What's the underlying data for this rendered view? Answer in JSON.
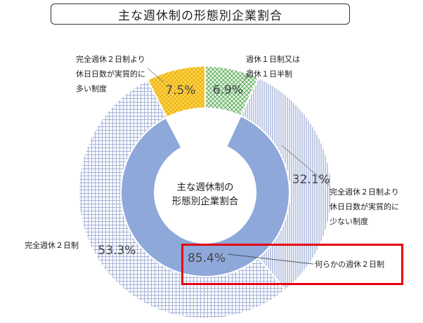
{
  "title": "主な週休制の形態別企業割合",
  "center_label": [
    "主な週休制の",
    "形態別企業割合"
  ],
  "colors": {
    "weekly_one_day": "#5fb85f",
    "full_two_day_more": "#8e9fcf",
    "full_two_day": "#a3b1d7",
    "full_two_day_less": "#f5c33b",
    "inner_ring": "#8fa8da",
    "highlight": "#e60012"
  },
  "chart_data": {
    "type": "pie",
    "title": "主な週休制の形態別企業割合",
    "outer_ring": [
      {
        "label": [
          "週休１日制又は",
          "週休１日半制"
        ],
        "value": 6.9,
        "display": "6.9%",
        "pattern": "green-lattice"
      },
      {
        "label": [
          "完全週休２日制より",
          "休日日数が実質的に",
          "少ない制度"
        ],
        "value": 32.1,
        "display": "32.1%",
        "pattern": "blue-vertical"
      },
      {
        "label": [
          "完全週休２日制"
        ],
        "value": 53.3,
        "display": "53.3%",
        "pattern": "blue-grid"
      },
      {
        "label": [
          "完全週休２日制より",
          "休日日数が実質的に",
          "多い制度"
        ],
        "value": 7.5,
        "display": "7.5%",
        "pattern": "yellow-lattice"
      }
    ],
    "inner_ring": [
      {
        "label": "何らかの週休２日制",
        "value": 85.4,
        "display": "85.4%"
      }
    ]
  }
}
